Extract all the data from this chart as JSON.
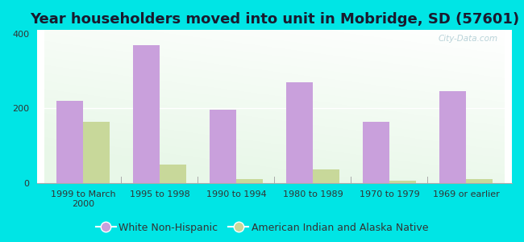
{
  "title": "Year householders moved into unit in Mobridge, SD (57601)",
  "categories": [
    "1999 to March\n2000",
    "1995 to 1998",
    "1990 to 1994",
    "1980 to 1989",
    "1970 to 1979",
    "1969 or earlier"
  ],
  "white_values": [
    220,
    370,
    197,
    270,
    163,
    247
  ],
  "native_values": [
    163,
    50,
    10,
    37,
    5,
    10
  ],
  "white_color": "#c9a0dc",
  "native_color": "#c8d89a",
  "fig_bg_color": "#00e5e5",
  "ylim": [
    0,
    410
  ],
  "yticks": [
    0,
    200,
    400
  ],
  "bar_width": 0.35,
  "legend_white": "White Non-Hispanic",
  "legend_native": "American Indian and Alaska Native",
  "watermark": "City-Data.com",
  "title_fontsize": 13,
  "tick_fontsize": 8,
  "legend_fontsize": 9
}
